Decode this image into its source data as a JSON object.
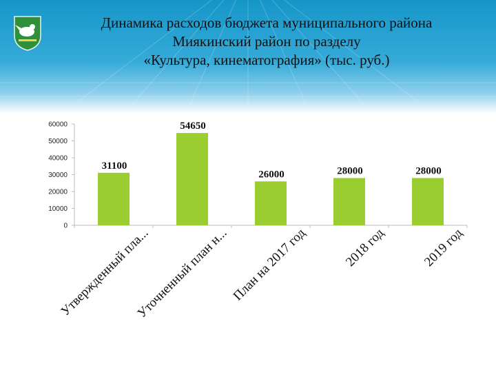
{
  "slide": {
    "title_lines": [
      "Динамика расходов бюджета муниципального района",
      "Миякинский район по разделу",
      "«Культура, кинематография» (тыс. руб.)"
    ]
  },
  "colors": {
    "bar": "#9acd2f",
    "header": "#1596c8",
    "axis": "#bbbbbb"
  },
  "chart_data": {
    "type": "bar",
    "categories": [
      "Утвержденный пла...",
      "Уточненный план н...",
      "План на 2017 год",
      "2018 год",
      "2019 год"
    ],
    "values": [
      31100,
      54650,
      26000,
      28000,
      28000
    ],
    "data_labels": [
      "31100",
      "54650",
      "26000",
      "28000",
      "28000"
    ],
    "yticks": [
      0,
      10000,
      20000,
      30000,
      40000,
      50000,
      60000
    ],
    "ylim": [
      0,
      60000
    ],
    "title": "",
    "xlabel": "",
    "ylabel": "",
    "grid": false,
    "legend": "none"
  }
}
